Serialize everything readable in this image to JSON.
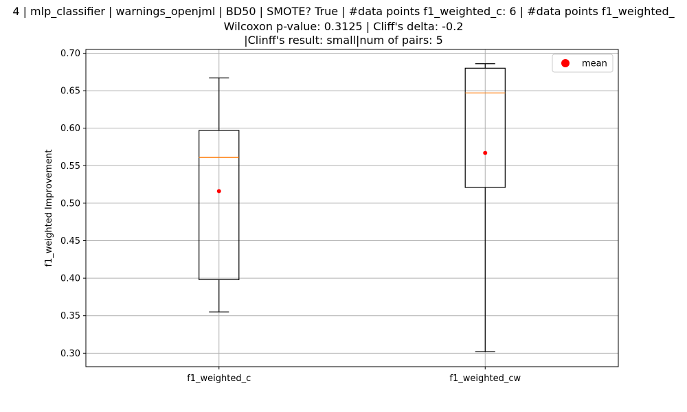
{
  "chart_data": {
    "type": "box",
    "title_lines": [
      "4 | mlp_classifier | warnings_openjml | BD50 | SMOTE? True | #data points f1_weighted_c: 6 | #data points f1_weighted_",
      "Wilcoxon p-value: 0.3125 | Cliff's delta: -0.2",
      "|Clinff's result: small|num of pairs: 5"
    ],
    "ylabel": "f1_weighted Improvement",
    "ylim": [
      0.282,
      0.705
    ],
    "yticks": [
      0.3,
      0.35,
      0.4,
      0.45,
      0.5,
      0.55,
      0.6,
      0.65,
      0.7
    ],
    "ytick_labels": [
      "0.30",
      "0.35",
      "0.40",
      "0.45",
      "0.50",
      "0.55",
      "0.60",
      "0.65",
      "0.70"
    ],
    "grid": true,
    "legend": {
      "position": "top-right",
      "entries": [
        "mean"
      ]
    },
    "colors": {
      "box": "#000000",
      "median": "#ff7f0e",
      "mean": "#ff0000",
      "grid": "#b0b0b0"
    },
    "categories": [
      "f1_weighted_c",
      "f1_weighted_cw"
    ],
    "boxes": [
      {
        "label": "f1_weighted_c",
        "whisker_low": 0.355,
        "q1": 0.398,
        "median": 0.561,
        "q3": 0.597,
        "whisker_high": 0.667,
        "mean": 0.516
      },
      {
        "label": "f1_weighted_cw",
        "whisker_low": 0.302,
        "q1": 0.521,
        "median": 0.647,
        "q3": 0.68,
        "whisker_high": 0.686,
        "mean": 0.567
      }
    ]
  }
}
